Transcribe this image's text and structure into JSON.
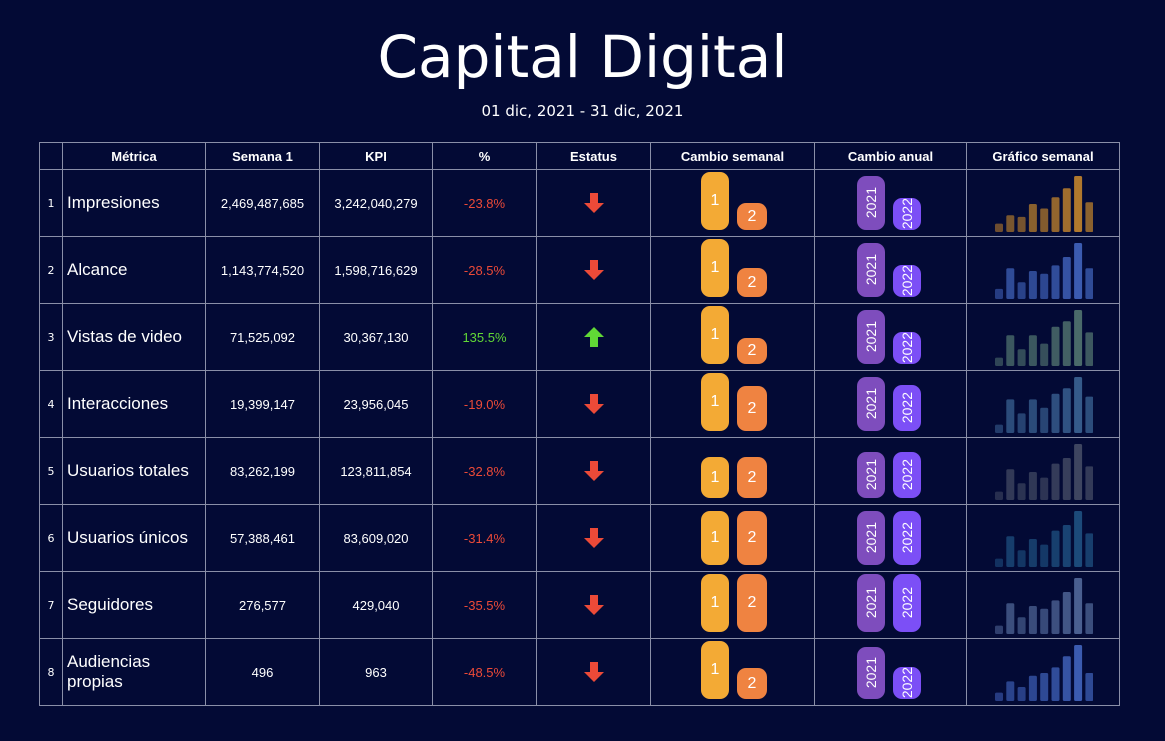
{
  "title": "Capital Digital",
  "date_range": "01 dic, 2021 - 31 dic, 2021",
  "headers": {
    "index": "",
    "metric": "Métrica",
    "week1": "Semana 1",
    "kpi": "KPI",
    "pct": "%",
    "status": "Estatus",
    "weekly_change": "Cambio semanal",
    "annual_change": "Cambio anual",
    "weekly_chart": "Gráfico semanal"
  },
  "colors": {
    "background": "#030a35",
    "negative": "#ec4a38",
    "positive": "#61d836",
    "week1_pill": "#f3aa35",
    "week2_pill": "#ef8341",
    "year2021_pill": "#7e4dbd",
    "year2022_pill": "#7c4ff6"
  },
  "pill_labels": {
    "w1": "1",
    "w2": "2",
    "y1": "2021",
    "y2": "2022"
  },
  "rows": [
    {
      "index": "1",
      "metric": "Impresiones",
      "week1": "2,469,487,685",
      "kpi": "3,242,040,279",
      "pct": "-23.8%",
      "trend": "down",
      "status_icon": "arrow-down-icon",
      "weekly_level": [
        1.0,
        0.46
      ],
      "annual_level": [
        0.93,
        0.56
      ],
      "spark_color": "#b0782d",
      "spark_values": [
        0.15,
        0.3,
        0.27,
        0.5,
        0.42,
        0.62,
        0.78,
        1.0,
        0.53
      ]
    },
    {
      "index": "2",
      "metric": "Alcance",
      "week1": "1,143,774,520",
      "kpi": "1,598,716,629",
      "pct": "-28.5%",
      "trend": "down",
      "status_icon": "arrow-down-icon",
      "weekly_level": [
        1.0,
        0.5
      ],
      "annual_level": [
        0.93,
        0.56
      ],
      "spark_color": "#3b5bb0",
      "spark_values": [
        0.18,
        0.55,
        0.3,
        0.5,
        0.45,
        0.6,
        0.75,
        1.0,
        0.55
      ]
    },
    {
      "index": "3",
      "metric": "Vistas de video",
      "week1": "71,525,092",
      "kpi": "30,367,130",
      "pct": "135.5%",
      "trend": "up",
      "status_icon": "arrow-up-icon",
      "weekly_level": [
        1.0,
        0.45
      ],
      "annual_level": [
        0.93,
        0.56
      ],
      "spark_color": "#4a6a6a",
      "spark_values": [
        0.15,
        0.55,
        0.3,
        0.55,
        0.4,
        0.7,
        0.8,
        1.0,
        0.6
      ]
    },
    {
      "index": "4",
      "metric": "Interacciones",
      "week1": "19,399,147",
      "kpi": "23,956,045",
      "pct": "-19.0%",
      "trend": "down",
      "status_icon": "arrow-down-icon",
      "weekly_level": [
        1.0,
        0.78
      ],
      "annual_level": [
        0.93,
        0.8
      ],
      "spark_color": "#355a8a",
      "spark_values": [
        0.15,
        0.6,
        0.35,
        0.6,
        0.45,
        0.7,
        0.8,
        1.0,
        0.65
      ]
    },
    {
      "index": "5",
      "metric": "Usuarios totales",
      "week1": "83,262,199",
      "kpi": "123,811,854",
      "pct": "-32.8%",
      "trend": "down",
      "status_icon": "arrow-down-icon",
      "weekly_level": [
        0.7,
        0.7
      ],
      "annual_level": [
        0.8,
        0.8
      ],
      "spark_color": "#3e4560",
      "spark_values": [
        0.15,
        0.55,
        0.3,
        0.5,
        0.4,
        0.65,
        0.75,
        1.0,
        0.6
      ]
    },
    {
      "index": "6",
      "metric": "Usuarios únicos",
      "week1": "57,388,461",
      "kpi": "83,609,020",
      "pct": "-31.4%",
      "trend": "down",
      "status_icon": "arrow-down-icon",
      "weekly_level": [
        0.93,
        0.93
      ],
      "annual_level": [
        0.93,
        0.93
      ],
      "spark_color": "#1c4a7a",
      "spark_values": [
        0.15,
        0.55,
        0.3,
        0.5,
        0.4,
        0.65,
        0.75,
        1.0,
        0.6
      ]
    },
    {
      "index": "7",
      "metric": "Seguidores",
      "week1": "276,577",
      "kpi": "429,040",
      "pct": "-35.5%",
      "trend": "down",
      "status_icon": "arrow-down-icon",
      "weekly_level": [
        1.0,
        1.0
      ],
      "annual_level": [
        1.0,
        1.0
      ],
      "spark_color": "#4a5f90",
      "spark_values": [
        0.15,
        0.55,
        0.3,
        0.5,
        0.45,
        0.6,
        0.75,
        1.0,
        0.55
      ]
    },
    {
      "index": "8",
      "metric": "Audiencias propias",
      "week1": "496",
      "kpi": "963",
      "pct": "-48.5%",
      "trend": "down",
      "status_icon": "arrow-down-icon",
      "weekly_level": [
        1.0,
        0.53
      ],
      "annual_level": [
        0.9,
        0.56
      ],
      "spark_color": "#3b5bb0",
      "spark_values": [
        0.15,
        0.35,
        0.25,
        0.45,
        0.5,
        0.6,
        0.8,
        1.0,
        0.5
      ]
    }
  ]
}
